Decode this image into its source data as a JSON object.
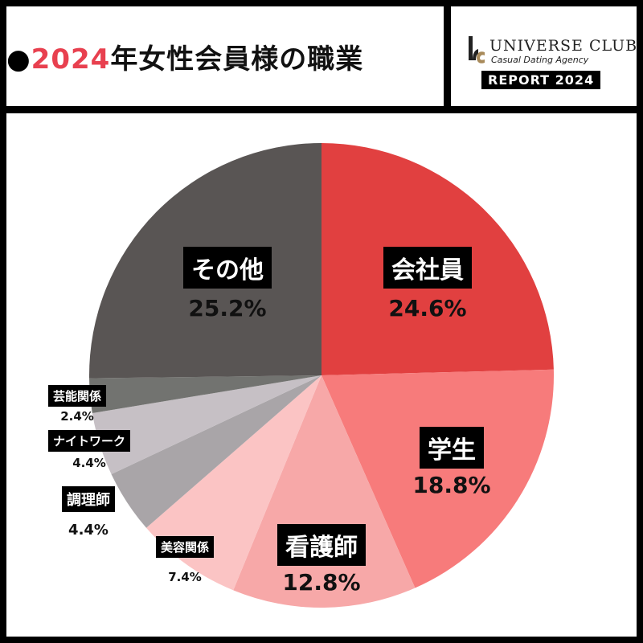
{
  "header": {
    "bullet": "●",
    "year": "2024",
    "title_rest": "年女性会員様の職業"
  },
  "logo": {
    "brand": "UNIVERSE CLUB",
    "tagline": "Casual Dating Agency",
    "report": "REPORT 2024"
  },
  "colors": {
    "accent": "#e8404f",
    "logo_gold": "#a88a5a"
  },
  "chart_data": {
    "type": "pie",
    "title": "2024年女性会員様の職業",
    "start_angle": "top (12 o'clock)",
    "direction": "clockwise",
    "categories": [
      "会社員",
      "学生",
      "看護師",
      "美容関係",
      "調理師",
      "ナイトワーク",
      "芸能関係",
      "その他"
    ],
    "values": [
      24.6,
      18.8,
      12.8,
      7.4,
      4.4,
      4.4,
      2.4,
      25.2
    ],
    "labels": [
      "24.6%",
      "18.8%",
      "12.8%",
      "7.4%",
      "4.4%",
      "4.4%",
      "2.4%",
      "25.2%"
    ],
    "colors": [
      "#e14040",
      "#f77b7b",
      "#f7a8a8",
      "#fbc4c4",
      "#a9a5a8",
      "#c6c0c5",
      "#727370",
      "#595554"
    ],
    "legend": "none (inline labels)"
  },
  "slices": [
    {
      "name": "会社員",
      "pct": "24.6%"
    },
    {
      "name": "学生",
      "pct": "18.8%"
    },
    {
      "name": "看護師",
      "pct": "12.8%"
    },
    {
      "name": "美容関係",
      "pct": "7.4%"
    },
    {
      "name": "調理師",
      "pct": "4.4%"
    },
    {
      "name": "ナイトワーク",
      "pct": "4.4%"
    },
    {
      "name": "芸能関係",
      "pct": "2.4%"
    },
    {
      "name": "その他",
      "pct": "25.2%"
    }
  ]
}
